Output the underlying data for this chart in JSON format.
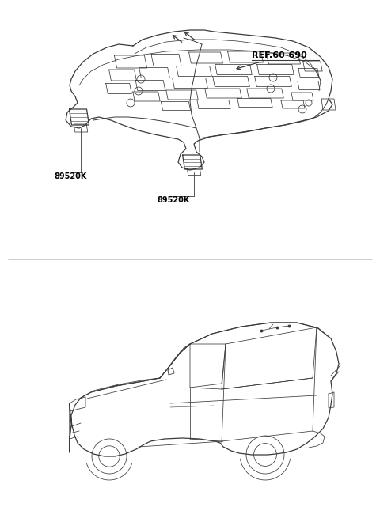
{
  "bg_color": "#ffffff",
  "line_color": "#3a3a3a",
  "label_color": "#000000",
  "ref_label": "REF.60-690",
  "part_label": "89520K",
  "font_size_labels": 7,
  "font_size_ref": 8,
  "upper_region": [
    0.0,
    0.47,
    1.0,
    1.0
  ],
  "lower_region": [
    0.0,
    0.0,
    1.0,
    0.47
  ]
}
